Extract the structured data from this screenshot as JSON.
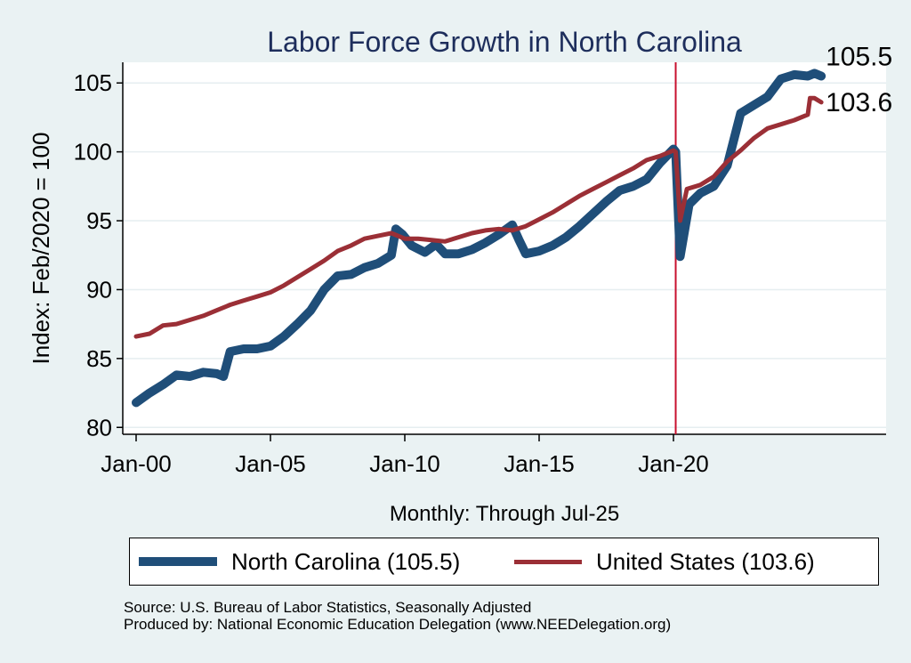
{
  "chart_data": {
    "type": "line",
    "title": "Labor Force Growth in North Carolina",
    "xlabel": "Monthly: Through Jul-25",
    "ylabel": "Index: Feb/2020 = 100",
    "ylim": [
      79.5,
      106.5
    ],
    "y_ticks": [
      80,
      85,
      90,
      95,
      100,
      105
    ],
    "x_ticks": [
      "Jan-00",
      "Jan-05",
      "Jan-10",
      "Jan-15",
      "Jan-20"
    ],
    "x_range": [
      "2000-01",
      "2025-07"
    ],
    "grid": true,
    "reference_line": {
      "x": "2020-02",
      "color": "#c8102e"
    },
    "legend": {
      "position": "bottom",
      "entries": [
        "North Carolina (105.5)",
        "United States (103.6)"
      ]
    },
    "series": [
      {
        "name": "North Carolina (105.5)",
        "color": "#1f4e79",
        "end_label": "105.5",
        "points": [
          [
            "2000-01",
            81.8
          ],
          [
            "2000-07",
            82.5
          ],
          [
            "2001-01",
            83.1
          ],
          [
            "2001-07",
            83.8
          ],
          [
            "2002-01",
            83.7
          ],
          [
            "2002-07",
            84.0
          ],
          [
            "2003-01",
            83.9
          ],
          [
            "2003-04",
            83.7
          ],
          [
            "2003-07",
            85.5
          ],
          [
            "2004-01",
            85.7
          ],
          [
            "2004-07",
            85.7
          ],
          [
            "2005-01",
            85.9
          ],
          [
            "2005-07",
            86.6
          ],
          [
            "2006-01",
            87.5
          ],
          [
            "2006-07",
            88.5
          ],
          [
            "2007-01",
            90.0
          ],
          [
            "2007-07",
            91.0
          ],
          [
            "2008-01",
            91.1
          ],
          [
            "2008-07",
            91.6
          ],
          [
            "2009-01",
            91.9
          ],
          [
            "2009-07",
            92.5
          ],
          [
            "2009-09",
            94.4
          ],
          [
            "2009-12",
            94.0
          ],
          [
            "2010-04",
            93.2
          ],
          [
            "2010-10",
            92.7
          ],
          [
            "2011-03",
            93.3
          ],
          [
            "2011-07",
            92.6
          ],
          [
            "2012-01",
            92.6
          ],
          [
            "2012-07",
            92.9
          ],
          [
            "2013-01",
            93.4
          ],
          [
            "2013-07",
            94.0
          ],
          [
            "2014-01",
            94.7
          ],
          [
            "2014-04",
            93.6
          ],
          [
            "2014-07",
            92.6
          ],
          [
            "2015-01",
            92.8
          ],
          [
            "2015-07",
            93.2
          ],
          [
            "2016-01",
            93.8
          ],
          [
            "2016-07",
            94.6
          ],
          [
            "2017-01",
            95.5
          ],
          [
            "2017-07",
            96.4
          ],
          [
            "2018-01",
            97.2
          ],
          [
            "2018-07",
            97.5
          ],
          [
            "2019-01",
            98.0
          ],
          [
            "2019-07",
            99.2
          ],
          [
            "2020-01",
            100.2
          ],
          [
            "2020-02",
            100.0
          ],
          [
            "2020-04",
            92.4
          ],
          [
            "2020-08",
            96.2
          ],
          [
            "2021-01",
            97.0
          ],
          [
            "2021-07",
            97.5
          ],
          [
            "2022-01",
            99.0
          ],
          [
            "2022-07",
            102.8
          ],
          [
            "2023-01",
            103.4
          ],
          [
            "2023-07",
            104.0
          ],
          [
            "2024-01",
            105.3
          ],
          [
            "2024-07",
            105.6
          ],
          [
            "2025-01",
            105.5
          ],
          [
            "2025-04",
            105.7
          ],
          [
            "2025-07",
            105.5
          ]
        ]
      },
      {
        "name": "United States (103.6)",
        "color": "#9b2f36",
        "end_label": "103.6",
        "points": [
          [
            "2000-01",
            86.6
          ],
          [
            "2000-07",
            86.8
          ],
          [
            "2001-01",
            87.4
          ],
          [
            "2001-07",
            87.5
          ],
          [
            "2002-01",
            87.8
          ],
          [
            "2002-07",
            88.1
          ],
          [
            "2003-01",
            88.5
          ],
          [
            "2003-07",
            88.9
          ],
          [
            "2004-01",
            89.2
          ],
          [
            "2004-07",
            89.5
          ],
          [
            "2005-01",
            89.8
          ],
          [
            "2005-07",
            90.3
          ],
          [
            "2006-01",
            90.9
          ],
          [
            "2006-07",
            91.5
          ],
          [
            "2007-01",
            92.1
          ],
          [
            "2007-07",
            92.8
          ],
          [
            "2008-01",
            93.2
          ],
          [
            "2008-07",
            93.7
          ],
          [
            "2009-01",
            93.9
          ],
          [
            "2009-07",
            94.1
          ],
          [
            "2010-01",
            93.7
          ],
          [
            "2010-07",
            93.7
          ],
          [
            "2011-01",
            93.6
          ],
          [
            "2011-07",
            93.5
          ],
          [
            "2012-01",
            93.8
          ],
          [
            "2012-07",
            94.1
          ],
          [
            "2013-01",
            94.3
          ],
          [
            "2013-07",
            94.4
          ],
          [
            "2014-01",
            94.3
          ],
          [
            "2014-07",
            94.6
          ],
          [
            "2015-01",
            95.1
          ],
          [
            "2015-07",
            95.6
          ],
          [
            "2016-01",
            96.2
          ],
          [
            "2016-07",
            96.8
          ],
          [
            "2017-01",
            97.3
          ],
          [
            "2017-07",
            97.8
          ],
          [
            "2018-01",
            98.3
          ],
          [
            "2018-07",
            98.8
          ],
          [
            "2019-01",
            99.4
          ],
          [
            "2019-07",
            99.7
          ],
          [
            "2020-01",
            100.1
          ],
          [
            "2020-02",
            100.0
          ],
          [
            "2020-04",
            95.0
          ],
          [
            "2020-07",
            97.3
          ],
          [
            "2021-01",
            97.6
          ],
          [
            "2021-07",
            98.2
          ],
          [
            "2022-01",
            99.3
          ],
          [
            "2022-07",
            100.1
          ],
          [
            "2023-01",
            101.0
          ],
          [
            "2023-07",
            101.7
          ],
          [
            "2024-01",
            102.0
          ],
          [
            "2024-07",
            102.3
          ],
          [
            "2025-01",
            102.7
          ],
          [
            "2025-02",
            103.9
          ],
          [
            "2025-04",
            103.9
          ],
          [
            "2025-07",
            103.6
          ]
        ]
      }
    ]
  },
  "notes": {
    "source": "Source: U.S. Bureau of Labor Statistics, Seasonally Adjusted",
    "producer": "Produced by: National Economic Education Delegation (www.NEEDelegation.org)"
  }
}
